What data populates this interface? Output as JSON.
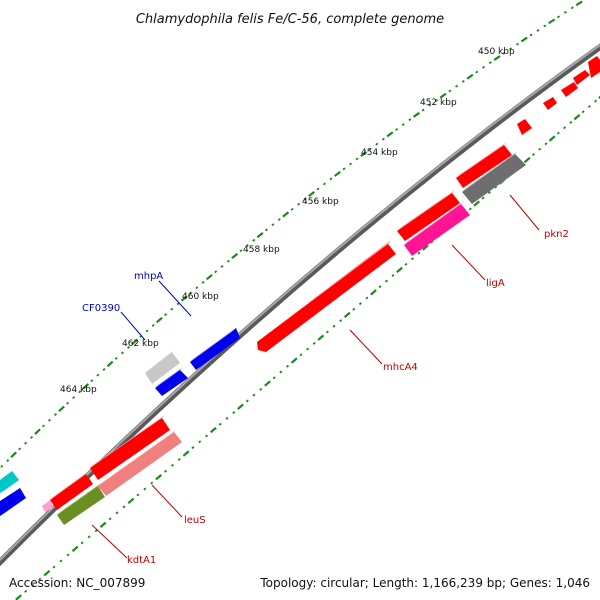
{
  "title": "Chlamydophila felis Fe/C-56, complete genome",
  "footer": {
    "accession": "Accession: NC_007899",
    "summary": "Topology: circular; Length: 1,166,239 bp; Genes: 1,046"
  },
  "ticks": [
    "450 kbp",
    "452 kbp",
    "454 kbp",
    "456 kbp",
    "458 kbp",
    "460 kbp",
    "462 kbp",
    "464 kbp"
  ],
  "gene_labels": {
    "pkn2": {
      "text": "pkn2",
      "color": "#c00000"
    },
    "ligA": {
      "text": "ligA",
      "color": "#c00000"
    },
    "mhcA4": {
      "text": "mhcA4",
      "color": "#c00000"
    },
    "leuS": {
      "text": "leuS",
      "color": "#c00000"
    },
    "kdtA1": {
      "text": "kdtA1",
      "color": "#c00000"
    },
    "mhpA": {
      "text": "mhpA",
      "color": "#0000cc"
    },
    "CF0390": {
      "text": "CF0390",
      "color": "#0000cc"
    }
  },
  "colors": {
    "backbone": "#7a7a7a",
    "tick_dots": "#1a8a1a",
    "gene_red": "#ff0000",
    "gene_blue": "#0000ee",
    "gene_gray": "#6e6e6e",
    "gene_magenta": "#ff1493",
    "gene_pink": "#f08080",
    "gene_olive": "#6b8e23",
    "gene_cyan": "#00c8c8",
    "gene_lightgray": "#c8c8c8"
  }
}
